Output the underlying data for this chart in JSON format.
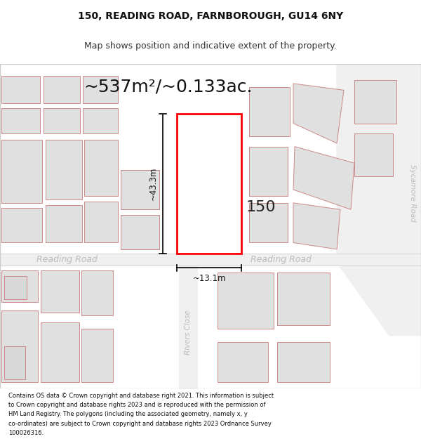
{
  "title_line1": "150, READING ROAD, FARNBOROUGH, GU14 6NY",
  "title_line2": "Map shows position and indicative extent of the property.",
  "area_label": "~537m²/~0.133ac.",
  "property_number": "150",
  "width_label": "~13.1m",
  "height_label": "~43.3m",
  "road_label_left": "Reading Road",
  "road_label_right": "Reading Road",
  "road_label_rivers": "Rivers Close",
  "road_label_sycamore": "Sycamore Road",
  "footer_lines": [
    "Contains OS data © Crown copyright and database right 2021. This information is subject",
    "to Crown copyright and database rights 2023 and is reproduced with the permission of",
    "HM Land Registry. The polygons (including the associated geometry, namely x, y",
    "co-ordinates) are subject to Crown copyright and database rights 2023 Ordnance Survey",
    "100026316."
  ],
  "bg_color": "#ffffff",
  "map_bg": "#faf5f5",
  "building_fill": "#e0e0e0",
  "building_edge": "#cc8888",
  "highlight_fill": "#ffffff",
  "highlight_edge": "#ff0000",
  "highlight_lw": 2.0,
  "building_lw": 0.7,
  "road_text_color": "#bbbbbb",
  "dim_color": "#111111",
  "area_fontsize": 18,
  "prop_num_fontsize": 16,
  "dim_fontsize": 8.5,
  "road_fontsize": 9,
  "small_road_fontsize": 7.5,
  "footer_fontsize": 6.0,
  "title_fontsize1": 10,
  "title_fontsize2": 9
}
